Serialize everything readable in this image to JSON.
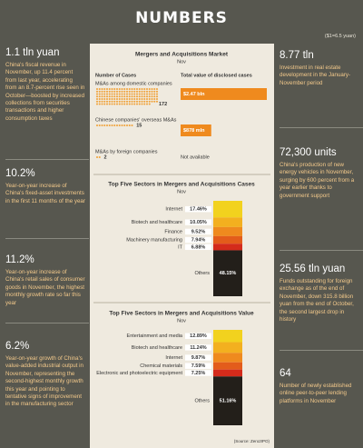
{
  "header": {
    "title": "NUMBERS",
    "note": "($1=6.5 yuan)"
  },
  "left_stats": [
    {
      "figure": "1.1 tln yuan",
      "text": "China's fiscal revenue in November, up 11.4 percent from last year, accelerating from an 8.7-percent rise seen in October—boosted by increased collections from securities transactions and higher consumption taxes"
    },
    {
      "figure": "10.2%",
      "text": "Year-on-year increase of China's fixed-asset investments in the first 11 months of the year"
    },
    {
      "figure": "11.2%",
      "text": "Year-on-year increase of China's retail sales of consumer goods in November, the highest monthly growth rate so far this year"
    },
    {
      "figure": "6.2%",
      "text": "Year-on-year growth of China's value-added industrial output in November, representing the second-highest monthly growth this year and pointing to tentative signs of improvement in the manufacturing sector"
    }
  ],
  "right_stats": [
    {
      "figure": "8.77 tln",
      "text": "Investment in real estate development in the January-November period"
    },
    {
      "figure": "72,300 units",
      "text": "China's production of new energy vehicles in November, surging by 600 percent from a year earlier thanks to government support"
    },
    {
      "figure": "25.56 tln yuan",
      "text": "Funds outstanding for foreign exchange as of the end of November, down 315.8 billion yuan from the end of October, the second largest drop in history"
    },
    {
      "figure": "64",
      "text": "Number of newly established online peer-to-peer lending platforms in November"
    }
  ],
  "ma_market": {
    "title": "Mergers and Acquisitions Market",
    "subtitle": "Nov",
    "cases_label": "Number of Cases",
    "value_label": "Total value of disclosed cases",
    "dot_color": "#f0a23a",
    "bar_color": "#ef8a1e",
    "rows": [
      {
        "name": "M&As among domestic companies",
        "cases": 172,
        "value": 2470,
        "value_label": "$2.47 bln"
      },
      {
        "name": "Chinese companies' overseas M&As",
        "cases": 15,
        "value": 878,
        "value_label": "$878 mln"
      },
      {
        "name": "M&As by foreign companies",
        "cases": 2,
        "value_note": "Not available"
      }
    ]
  },
  "charts": [
    {
      "type": "stacked_column",
      "title": "Top Five Sectors in Mergers and Acquisitions Cases",
      "subtitle": "Nov",
      "categories": [
        "Internet",
        "Biotech and healthcare",
        "Finance",
        "Machinery manufacturing",
        "IT",
        "Others"
      ],
      "values": [
        17.46,
        10.05,
        9.52,
        7.94,
        6.88,
        48.15
      ],
      "value_labels": [
        "17.46%",
        "10.05%",
        "9.52%",
        "7.94%",
        "6.88%",
        "48.15%"
      ],
      "colors": [
        "#f2d21e",
        "#f3b01f",
        "#ef8a1e",
        "#e35c1b",
        "#d42b1b",
        "#231f1a"
      ]
    },
    {
      "type": "stacked_column",
      "title": "Top Five Sectors in Mergers and Acquisitions Value",
      "subtitle": "Nov",
      "categories": [
        "Entertainment and media",
        "Biotech and healthcare",
        "Internet",
        "Chemical materials",
        "Electronic and photoelectric equipment",
        "Others"
      ],
      "values": [
        12.89,
        11.24,
        9.87,
        7.59,
        7.25,
        51.16
      ],
      "value_labels": [
        "12.89%",
        "11.24%",
        "9.87%",
        "7.59%",
        "7.25%",
        "51.16%"
      ],
      "colors": [
        "#f2d21e",
        "#f3b01f",
        "#ef8a1e",
        "#e35c1b",
        "#d42b1b",
        "#231f1a"
      ]
    }
  ],
  "source": "(Source: Zero2IPO)"
}
